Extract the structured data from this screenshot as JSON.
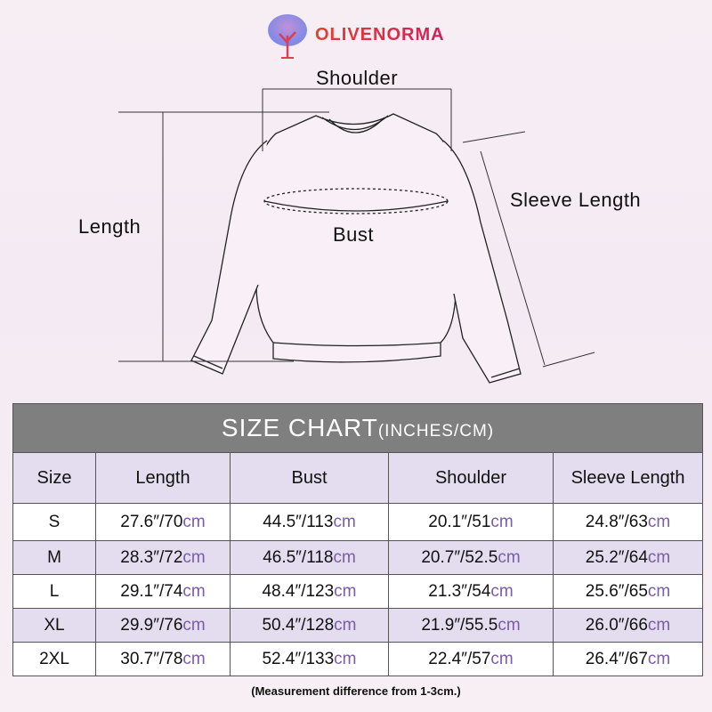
{
  "brand": {
    "name": "OLIVENORMA"
  },
  "diagram": {
    "labels": {
      "shoulder": "Shoulder",
      "length": "Length",
      "bust": "Bust",
      "sleeve": "Sleeve Length"
    }
  },
  "table": {
    "title": "SIZE CHART",
    "title_units": "(INCHES/CM)",
    "columns": [
      "Size",
      "Length",
      "Bust",
      "Shoulder",
      "Sleeve Length"
    ],
    "unit_suffix": "cm",
    "rows": [
      [
        "S",
        "27.6″/70",
        "44.5″/113",
        "20.1″/51",
        "24.8″/63"
      ],
      [
        "M",
        "28.3″/72",
        "46.5″/118",
        "20.7″/52.5",
        "25.2″/64"
      ],
      [
        "L",
        "29.1″/74",
        "48.4″/123",
        "21.3″/54",
        "25.6″/65"
      ],
      [
        "XL",
        "29.9″/76",
        "50.4″/128",
        "21.9″/55.5",
        "26.0″/66"
      ],
      [
        "2XL",
        "30.7″/78",
        "52.4″/133",
        "22.4″/57",
        "26.4″/67"
      ]
    ]
  },
  "note": "(Measurement difference from 1-3cm.)",
  "colors": {
    "header": "#7f7f7f",
    "lavender": "#e4dcef",
    "cm": "#7a5ca8",
    "brand": "#d9283f"
  }
}
